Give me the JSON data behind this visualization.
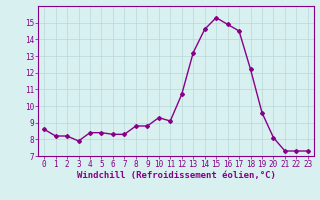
{
  "x": [
    0,
    1,
    2,
    3,
    4,
    5,
    6,
    7,
    8,
    9,
    10,
    11,
    12,
    13,
    14,
    15,
    16,
    17,
    18,
    19,
    20,
    21,
    22,
    23
  ],
  "y": [
    8.6,
    8.2,
    8.2,
    7.9,
    8.4,
    8.4,
    8.3,
    8.3,
    8.8,
    8.8,
    9.3,
    9.1,
    10.7,
    13.2,
    14.6,
    15.3,
    14.9,
    14.5,
    12.2,
    9.6,
    8.1,
    7.3,
    7.3,
    7.3
  ],
  "line_color": "#880088",
  "marker": "D",
  "marker_size": 2,
  "bg_color": "#d8f0f0",
  "grid_color": "#b8d8d8",
  "xlabel": "Windchill (Refroidissement éolien,°C)",
  "ylim": [
    7,
    16
  ],
  "xlim": [
    -0.5,
    23.5
  ],
  "yticks": [
    7,
    8,
    9,
    10,
    11,
    12,
    13,
    14,
    15
  ],
  "xticks": [
    0,
    1,
    2,
    3,
    4,
    5,
    6,
    7,
    8,
    9,
    10,
    11,
    12,
    13,
    14,
    15,
    16,
    17,
    18,
    19,
    20,
    21,
    22,
    23
  ],
  "tick_label_fontsize": 5.5,
  "xlabel_fontsize": 6.5,
  "linewidth": 1.0
}
